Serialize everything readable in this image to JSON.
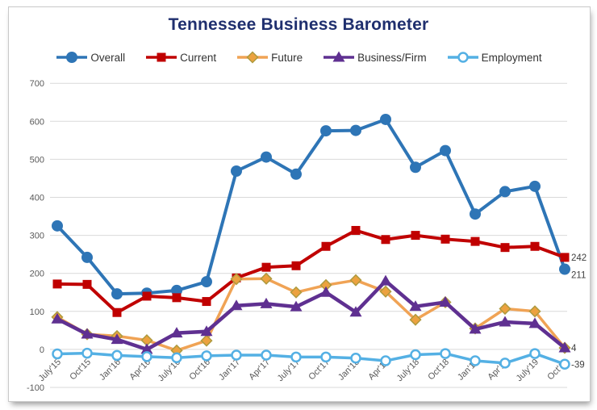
{
  "window": {
    "background": "#FFFFFF",
    "card_border": "#C9C9C9"
  },
  "chart_data": {
    "type": "line",
    "title": "Tennessee Business Barometer",
    "title_color": "#1F2F6E",
    "xlabel": "",
    "ylabel": "",
    "ylim": [
      -100,
      700
    ],
    "ytick_step": 100,
    "ytick_labels": [
      "700",
      "600",
      "500",
      "400",
      "300",
      "200",
      "100",
      "0",
      "-100"
    ],
    "grid": true,
    "grid_color": "#D9D9D9",
    "axis_label_color": "#595959",
    "legend_position": "top",
    "categories": [
      "July'15",
      "Oct'15",
      "Jan'16",
      "Apr'16",
      "July'16",
      "Oct'16",
      "Jan'17",
      "Apr'17",
      "July'17",
      "Oct'17",
      "Jan'18",
      "Apr'18",
      "July'18",
      "Oct'18",
      "Jan'19",
      "Apr'19",
      "July'19",
      "Oct'19"
    ],
    "series": [
      {
        "name": "Overall",
        "color": "#2E75B6",
        "marker": "circle",
        "values": [
          325,
          242,
          146,
          148,
          155,
          178,
          469,
          506,
          461,
          575,
          576,
          605,
          479,
          523,
          356,
          415,
          429,
          211
        ]
      },
      {
        "name": "Current",
        "color": "#C00000",
        "marker": "square",
        "values": [
          172,
          171,
          97,
          140,
          136,
          126,
          188,
          216,
          220,
          271,
          313,
          289,
          300,
          290,
          284,
          268,
          271,
          242
        ]
      },
      {
        "name": "Future",
        "color": "#F0A355",
        "marker": "diamond",
        "marker_fill": "#ECA23F",
        "marker_stroke": "#AE9A3E",
        "values": [
          85,
          40,
          35,
          24,
          -3,
          23,
          185,
          186,
          150,
          169,
          182,
          152,
          78,
          124,
          55,
          107,
          100,
          4
        ]
      },
      {
        "name": "Business/Firm",
        "color": "#5F3091",
        "marker": "triangle",
        "values": [
          80,
          40,
          26,
          0,
          43,
          47,
          115,
          120,
          112,
          150,
          98,
          180,
          113,
          124,
          53,
          72,
          68,
          4
        ]
      },
      {
        "name": "Employment",
        "color": "#54B0E4",
        "marker": "open-circle",
        "values": [
          -12,
          -10,
          -16,
          -19,
          -22,
          -17,
          -15,
          -15,
          -20,
          -20,
          -23,
          -30,
          -14,
          -11,
          -30,
          -36,
          -11,
          -39
        ]
      }
    ],
    "end_labels": [
      {
        "text": "242",
        "series": "Current"
      },
      {
        "text": "211",
        "series": "Overall"
      },
      {
        "text": "4",
        "series": "Business/Firm"
      },
      {
        "text": "-39",
        "series": "Employment"
      }
    ],
    "end_label_color": "#3F3F3F"
  }
}
